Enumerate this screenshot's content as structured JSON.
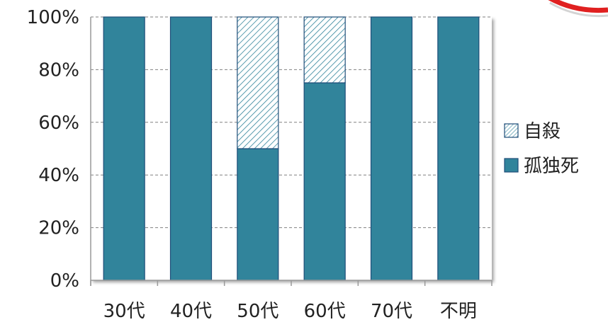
{
  "chart_data": {
    "type": "bar",
    "stacked": true,
    "title": "",
    "xlabel": "",
    "ylabel": "",
    "categories": [
      "30代",
      "40代",
      "50代",
      "60代",
      "70代",
      "不明"
    ],
    "series": [
      {
        "name": "孤独死",
        "values": [
          100,
          100,
          50,
          75,
          100,
          100
        ],
        "color": "#31849b",
        "pattern": "solid"
      },
      {
        "name": "自殺",
        "values": [
          0,
          0,
          50,
          25,
          0,
          0
        ],
        "color": "#31849b",
        "pattern": "hatched"
      }
    ],
    "yticks": [
      "0%",
      "20%",
      "40%",
      "60%",
      "80%",
      "100%"
    ],
    "ylim": [
      0,
      100
    ],
    "grid": true,
    "legend": "right",
    "legend_order": [
      "自殺",
      "孤独死"
    ]
  },
  "colors": {
    "bar_fill": "#31849b",
    "bar_edge": "#1f4e79",
    "grid": "#808080",
    "accent_ring": "#e02020"
  }
}
